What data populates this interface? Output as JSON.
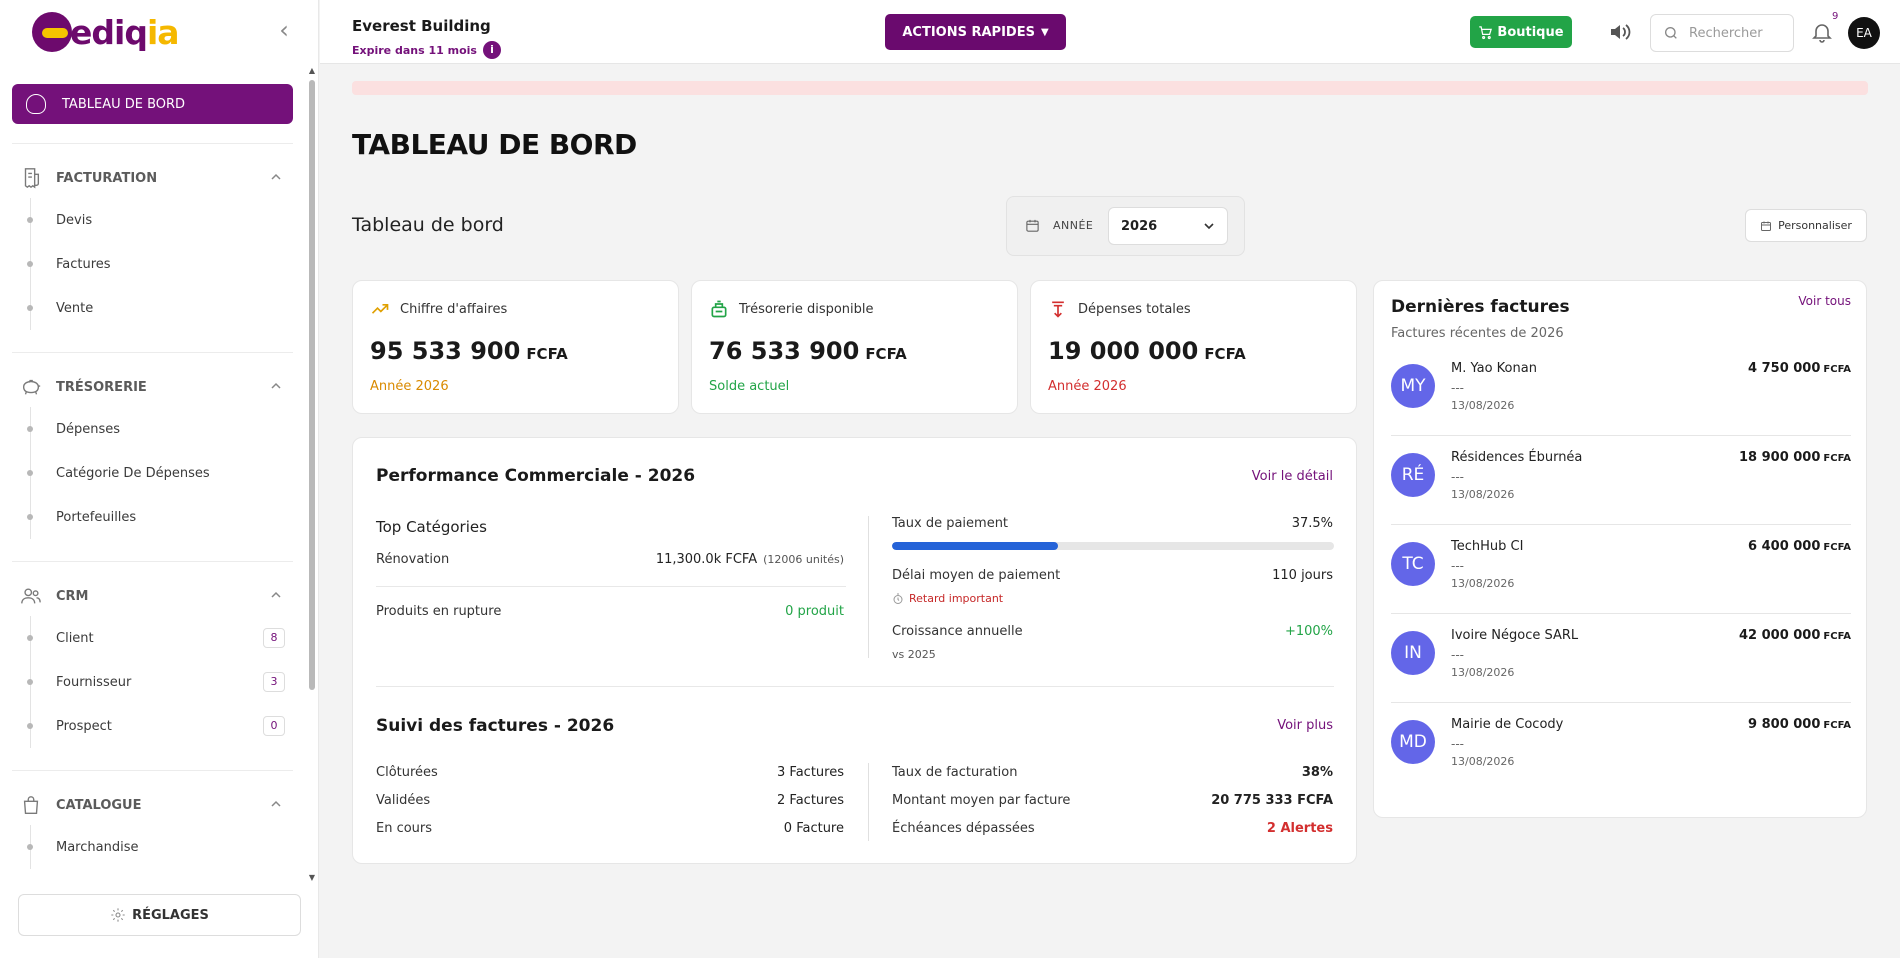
{
  "app": {
    "logo_main": "ediq",
    "logo_accent": "ia"
  },
  "sidebar": {
    "active": "TABLEAU DE BORD",
    "sections": [
      {
        "title": "FACTURATION",
        "items": [
          {
            "label": "Devis"
          },
          {
            "label": "Factures"
          },
          {
            "label": "Vente"
          }
        ]
      },
      {
        "title": "TRÉSORERIE",
        "items": [
          {
            "label": "Dépenses"
          },
          {
            "label": "Catégorie De Dépenses"
          },
          {
            "label": "Portefeuilles"
          }
        ]
      },
      {
        "title": "CRM",
        "items": [
          {
            "label": "Client",
            "badge": "8"
          },
          {
            "label": "Fournisseur",
            "badge": "3"
          },
          {
            "label": "Prospect",
            "badge": "0"
          }
        ]
      },
      {
        "title": "CATALOGUE",
        "items": [
          {
            "label": "Marchandise"
          }
        ]
      }
    ],
    "settings_label": "RÉGLAGES"
  },
  "topbar": {
    "company": "Everest Building",
    "expire": "Expire dans 11 mois",
    "quick_actions": "ACTIONS RAPIDES",
    "shop": "Boutique",
    "search_placeholder": "Rechercher",
    "notif_count": "9",
    "user_initials": "EA"
  },
  "main": {
    "page_title": "TABLEAU DE BORD",
    "subtitle": "Tableau de bord",
    "year_label": "ANNÉE",
    "year_value": "2026",
    "customize": "Personnaliser",
    "colors": {
      "accent": "#74117a",
      "green": "#22a447",
      "orange": "#d98a00",
      "red": "#d32f2f",
      "blue": "#2563d8"
    }
  },
  "kpis": [
    {
      "label": "Chiffre d'affaires",
      "value": "95 533 900",
      "unit": "FCFA",
      "note": "Année 2026",
      "icon": "trending-up-icon"
    },
    {
      "label": "Trésorerie disponible",
      "value": "76 533 900",
      "unit": "FCFA",
      "note": "Solde actuel",
      "icon": "cash-register-icon"
    },
    {
      "label": "Dépenses totales",
      "value": "19 000 000",
      "unit": "FCFA",
      "note": "Année 2026",
      "icon": "money-out-icon"
    }
  ],
  "performance": {
    "title": "Performance Commerciale - 2026",
    "detail_link": "Voir le détail",
    "top_categories": "Top Catégories",
    "category_name": "Rénovation",
    "category_value": "11,300.0k FCFA",
    "category_units": "(12006 unités)",
    "out_of_stock_label": "Produits en rupture",
    "out_of_stock_value": "0 produit",
    "payment_rate_label": "Taux de paiement",
    "payment_rate_value": "37.5%",
    "payment_rate_fraction": 0.375,
    "delay_label": "Délai moyen de paiement",
    "delay_value": "110 jours",
    "delay_warning": "Retard important",
    "growth_label": "Croissance annuelle",
    "growth_value": "+100%",
    "growth_ref": "vs 2025"
  },
  "invoice_tracking": {
    "title": "Suivi des factures - 2026",
    "more_link": "Voir plus",
    "closed_label": "Clôturées",
    "closed_value": "3 Factures",
    "validated_label": "Validées",
    "validated_value": "2 Factures",
    "pending_label": "En cours",
    "pending_value": "0 Facture",
    "billing_rate_label": "Taux de facturation",
    "billing_rate_value": "38%",
    "avg_amount_label": "Montant moyen par facture",
    "avg_amount_value": "20 775 333 FCFA",
    "overdue_label": "Échéances dépassées",
    "overdue_value": "2 Alertes"
  },
  "latest_invoices": {
    "title": "Dernières factures",
    "subtitle": "Factures récentes de 2026",
    "see_all": "Voir tous",
    "rows": [
      {
        "initials": "MY",
        "name": "M. Yao Konan",
        "dash": "---",
        "date": "13/08/2026",
        "amount": "4 750 000",
        "unit": "FCFA"
      },
      {
        "initials": "RÉ",
        "name": "Résidences Éburnéa",
        "dash": "---",
        "date": "13/08/2026",
        "amount": "18 900 000",
        "unit": "FCFA"
      },
      {
        "initials": "TC",
        "name": "TechHub CI",
        "dash": "---",
        "date": "13/08/2026",
        "amount": "6 400 000",
        "unit": "FCFA"
      },
      {
        "initials": "IN",
        "name": "Ivoire Négoce SARL",
        "dash": "---",
        "date": "13/08/2026",
        "amount": "42 000 000",
        "unit": "FCFA"
      },
      {
        "initials": "MD",
        "name": "Mairie de Cocody",
        "dash": "---",
        "date": "13/08/2026",
        "amount": "9 800 000",
        "unit": "FCFA"
      }
    ]
  }
}
